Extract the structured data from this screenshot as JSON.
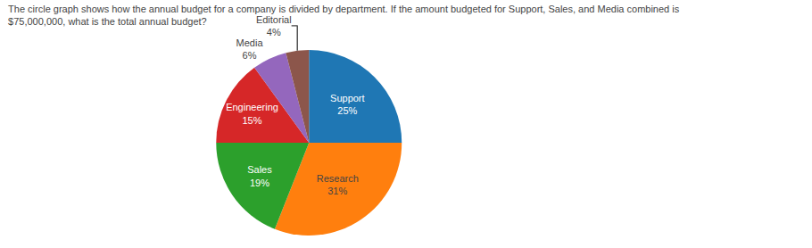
{
  "chart_data": {
    "type": "pie",
    "title": "The circle graph shows how the annual budget for a company is divided by department. If the amount budgeted for Support, Sales, and Media combined is",
    "subtitle": "$75,000,000, what is the total annual budget?",
    "categories": [
      "Support",
      "Research",
      "Sales",
      "Engineering",
      "Media",
      "Editorial"
    ],
    "values": [
      25,
      31,
      19,
      15,
      6,
      4
    ],
    "value_labels": [
      "25%",
      "31%",
      "19%",
      "15%",
      "6%",
      "4%"
    ],
    "data_labels": true
  }
}
